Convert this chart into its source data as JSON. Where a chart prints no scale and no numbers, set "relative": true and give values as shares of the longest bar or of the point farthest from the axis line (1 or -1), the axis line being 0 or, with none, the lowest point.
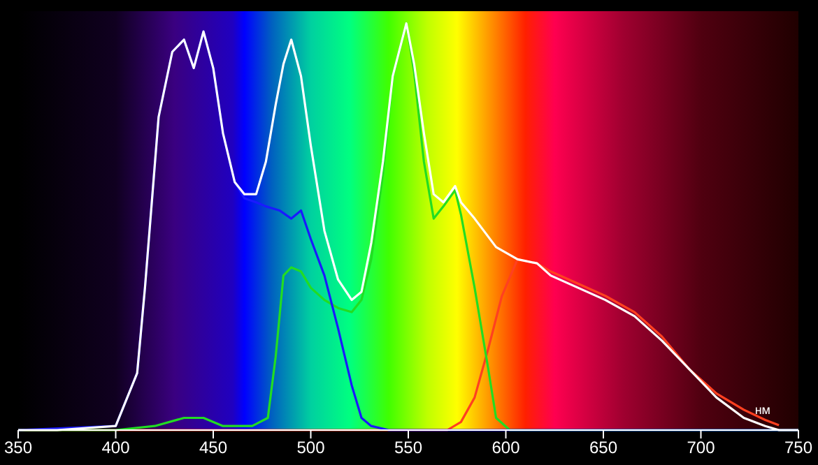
{
  "chart_data": {
    "type": "line",
    "relative": true,
    "xlabel": "нм",
    "xlim": [
      350,
      750
    ],
    "xticks": [
      350,
      400,
      450,
      500,
      550,
      600,
      650,
      700,
      750
    ],
    "marker": "none",
    "series": [
      {
        "color": "#ffffff",
        "x": [
          350,
          370,
          400,
          411,
          415,
          422,
          429,
          435,
          440,
          445,
          450,
          455,
          461,
          466,
          472,
          477,
          482,
          486,
          490,
          495,
          500,
          507,
          514,
          521,
          526,
          531,
          537,
          542,
          549,
          553,
          558,
          563,
          568,
          574,
          577,
          584,
          595,
          606,
          616,
          623,
          637,
          651,
          666,
          680,
          694,
          708,
          722,
          733,
          740,
          750
        ],
        "values": [
          0,
          0,
          0.01,
          0.14,
          0.35,
          0.77,
          0.93,
          0.96,
          0.89,
          0.98,
          0.89,
          0.73,
          0.61,
          0.58,
          0.58,
          0.66,
          0.8,
          0.9,
          0.96,
          0.87,
          0.7,
          0.49,
          0.37,
          0.32,
          0.34,
          0.46,
          0.66,
          0.87,
          1,
          0.9,
          0.73,
          0.58,
          0.56,
          0.6,
          0.56,
          0.52,
          0.45,
          0.42,
          0.41,
          0.38,
          0.35,
          0.32,
          0.28,
          0.22,
          0.15,
          0.08,
          0.03,
          0.01,
          0,
          0
        ]
      },
      {
        "color": "#1a1aff",
        "x": [
          350,
          400,
          411,
          415,
          422,
          429,
          435,
          440,
          445,
          450,
          455,
          461,
          466,
          472,
          477,
          484,
          490,
          495,
          500,
          507,
          514,
          521,
          526,
          531,
          540,
          750
        ],
        "values": [
          0,
          0.01,
          0.14,
          0.35,
          0.77,
          0.93,
          0.96,
          0.89,
          0.98,
          0.89,
          0.73,
          0.61,
          0.57,
          0.56,
          0.55,
          0.54,
          0.52,
          0.54,
          0.47,
          0.38,
          0.25,
          0.11,
          0.03,
          0.01,
          0,
          0
        ]
      },
      {
        "color": "#22dd22",
        "x": [
          350,
          400,
          420,
          435,
          445,
          455,
          470,
          478,
          482,
          486,
          490,
          495,
          500,
          507,
          514,
          521,
          526,
          531,
          537,
          542,
          549,
          553,
          558,
          563,
          568,
          574,
          577,
          584,
          591,
          595,
          602,
          750
        ],
        "values": [
          0,
          0,
          0.01,
          0.03,
          0.03,
          0.01,
          0.01,
          0.03,
          0.18,
          0.38,
          0.4,
          0.39,
          0.35,
          0.32,
          0.3,
          0.29,
          0.32,
          0.42,
          0.63,
          0.87,
          1,
          0.88,
          0.66,
          0.52,
          0.55,
          0.59,
          0.53,
          0.35,
          0.15,
          0.03,
          0,
          0
        ]
      },
      {
        "color": "#ff4020",
        "x": [
          350,
          570,
          577,
          584,
          591,
          598,
          606,
          616,
          623,
          637,
          651,
          666,
          680,
          694,
          708,
          722,
          733,
          740
        ],
        "values": [
          0,
          0,
          0.02,
          0.08,
          0.2,
          0.33,
          0.42,
          0.41,
          0.39,
          0.36,
          0.33,
          0.29,
          0.23,
          0.15,
          0.09,
          0.05,
          0.025,
          0.012
        ]
      }
    ]
  }
}
